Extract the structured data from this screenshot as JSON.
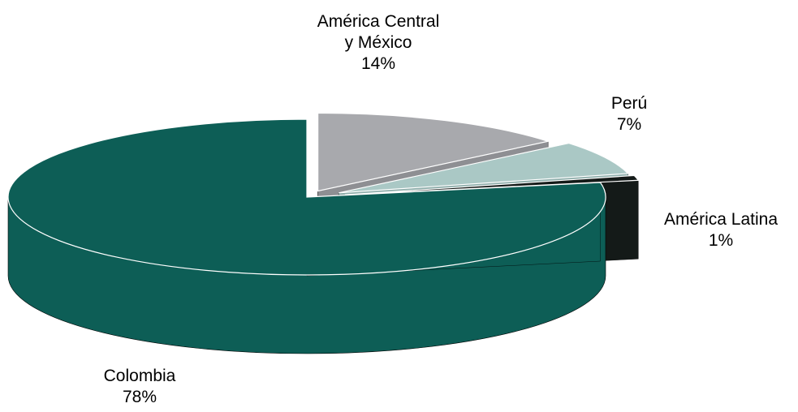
{
  "chart_data": {
    "type": "pie",
    "style": "3d-exploded",
    "slices": [
      {
        "name": "América Central y México",
        "label_lines": [
          "América Central",
          "y México"
        ],
        "value_label": "14%",
        "value": 14,
        "color": "#A8A9AD",
        "side_color": "#8E8F93"
      },
      {
        "name": "Perú",
        "label_lines": [
          "Perú"
        ],
        "value_label": "7%",
        "value": 7,
        "color": "#AAC8C5",
        "side_color": "#8FAEAB"
      },
      {
        "name": "América Latina",
        "label_lines": [
          "América Latina"
        ],
        "value_label": "1%",
        "value": 1,
        "color": "#141A18",
        "side_color": "#141A18"
      },
      {
        "name": "Colombia",
        "label_lines": [
          "Colombia"
        ],
        "value_label": "78%",
        "value": 78,
        "color": "#0D5E56",
        "side_color": "#0D5E56"
      }
    ]
  }
}
